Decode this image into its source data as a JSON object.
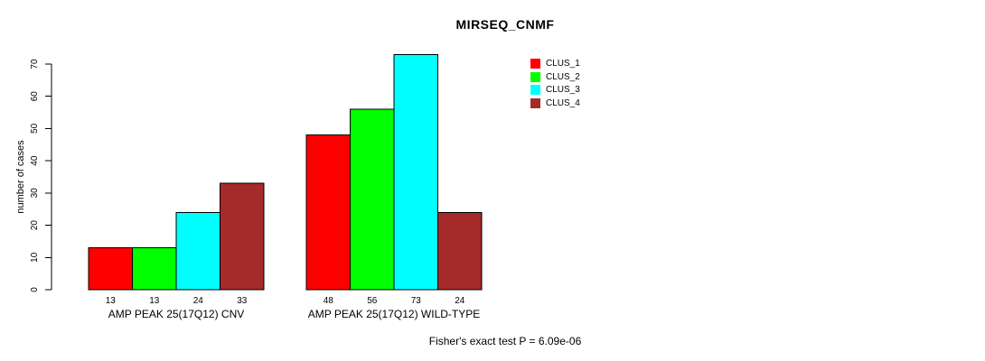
{
  "chart_data": {
    "type": "bar",
    "title": "MIRSEQ_CNMF",
    "ylabel": "number of cases",
    "xlabel": "",
    "footnote": "Fisher's exact test P = 6.09e-06",
    "categories": [
      "AMP PEAK 25(17Q12) CNV",
      "AMP PEAK 25(17Q12) WILD-TYPE"
    ],
    "series": [
      {
        "name": "CLUS_1",
        "color": "#FF0000",
        "values": [
          13,
          48
        ]
      },
      {
        "name": "CLUS_2",
        "color": "#00FF00",
        "values": [
          13,
          56
        ]
      },
      {
        "name": "CLUS_3",
        "color": "#00FFFF",
        "values": [
          24,
          73
        ]
      },
      {
        "name": "CLUS_4",
        "color": "#A52A2A",
        "values": [
          33,
          24
        ]
      }
    ],
    "yticks": [
      0,
      10,
      20,
      30,
      40,
      50,
      60,
      70
    ],
    "ylim": [
      0,
      70
    ],
    "grid": false,
    "bar_value_labels": true,
    "legend_position": "top-right"
  }
}
